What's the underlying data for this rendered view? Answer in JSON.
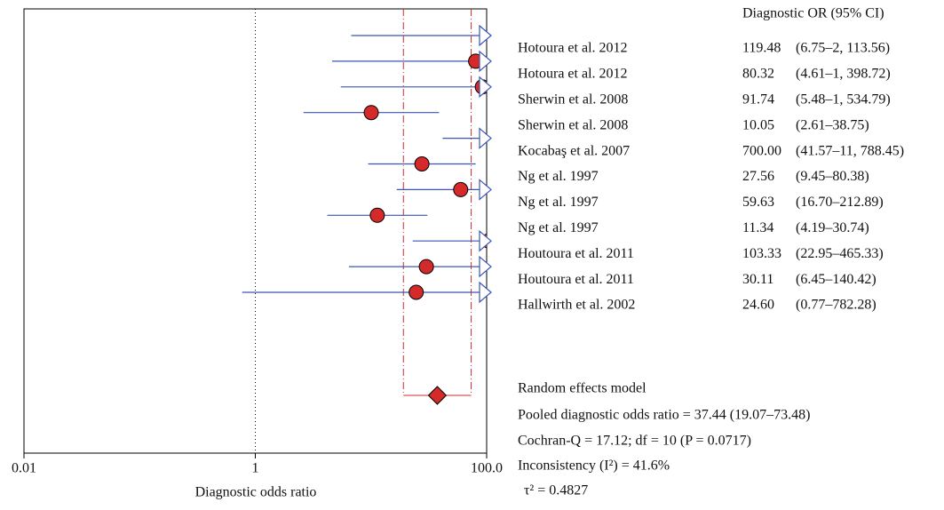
{
  "chart_data": {
    "type": "forest",
    "column_header": "Diagnostic OR (95% CI)",
    "xlabel": "Diagnostic odds ratio",
    "log_x": true,
    "xlim": [
      0.01,
      100
    ],
    "xticks": [
      0.01,
      1,
      {
        "value": 100,
        "label": "100.0"
      }
    ],
    "ref_line": 1,
    "studies": {
      "names": [
        "Hotoura et al. 2012",
        "Hotoura et al. 2012",
        "Sherwin et al. 2008",
        "Sherwin et al. 2008",
        "Kocabaş et al. 2007",
        "Ng et al. 1997",
        "Ng et al. 1997",
        "Ng et al. 1997",
        "Houtoura et al. 2011",
        "Houtoura et al. 2011",
        "Hallwirth et al. 2002"
      ],
      "values": [
        119.48,
        80.32,
        91.74,
        10.05,
        700,
        27.56,
        59.63,
        11.34,
        103.33,
        30.11,
        24.6
      ],
      "value_labels": [
        "119.48",
        "80.32",
        "91.74",
        "10.05",
        "700.00",
        "27.56",
        "59.63",
        "11.34",
        "103.33",
        "30.11",
        "24.60"
      ],
      "lower": [
        6.75,
        4.61,
        5.48,
        2.61,
        41.57,
        9.45,
        16.7,
        4.19,
        22.95,
        6.45,
        0.77
      ],
      "upper": [
        2113.56,
        1398.72,
        1534.79,
        38.75,
        11788.45,
        80.38,
        212.89,
        30.74,
        465.33,
        140.42,
        782.28
      ],
      "ci_labels": [
        "(6.75–2, 113.56)",
        "(4.61–1, 398.72)",
        "(5.48–1, 534.79)",
        "(2.61–38.75)",
        "(41.57–11, 788.45)",
        "(9.45–80.38)",
        "(16.70–212.89)",
        "(4.19–30.74)",
        "(22.95–465.33)",
        "(6.45–140.42)",
        "(0.77–782.28)"
      ],
      "color": "#d42a2a",
      "line_color": "#3b55b5"
    },
    "pooled": {
      "model": "Random effects model",
      "value": 37.44,
      "lower": 19.07,
      "upper": 73.48,
      "label": "Pooled diagnostic odds ratio = 37.44 (19.07–73.48)",
      "color": "#d42a2a"
    },
    "stats": [
      "Cochran-Q = 17.12; df = 10 (P = 0.0717)",
      "Inconsistency (I²) = 41.6%",
      "τ² = 0.4827"
    ]
  }
}
